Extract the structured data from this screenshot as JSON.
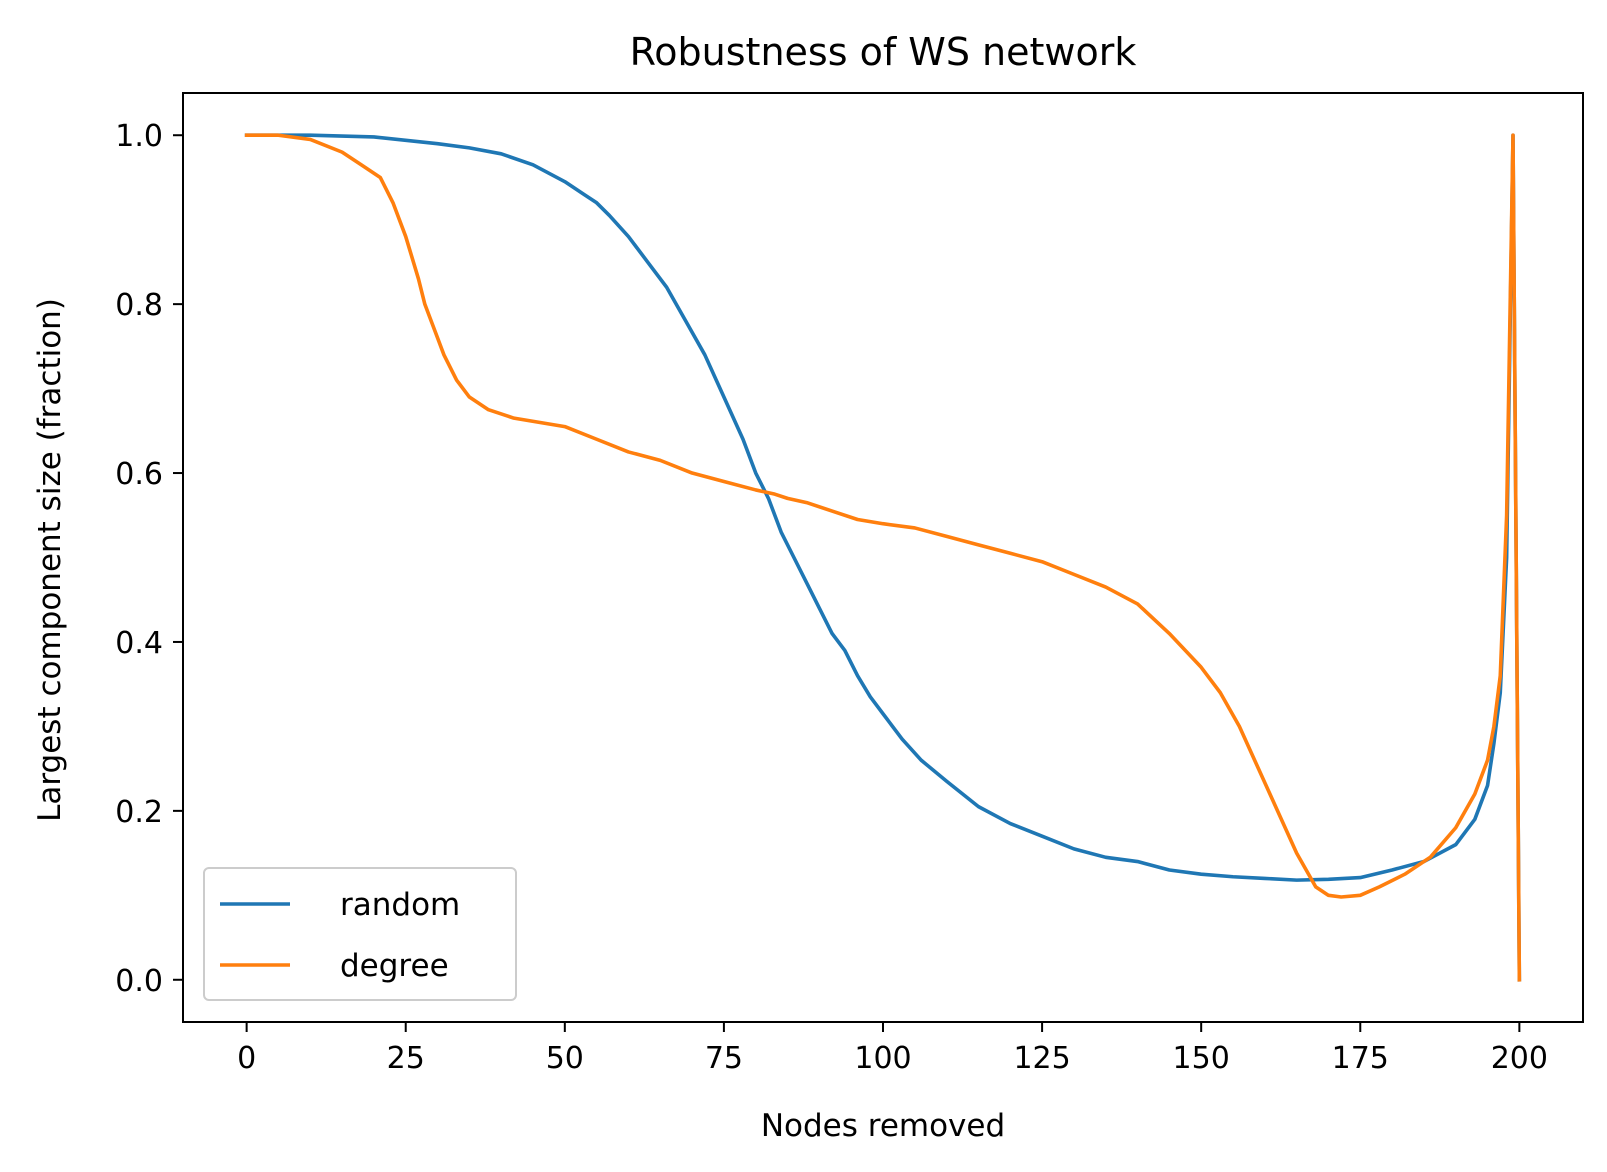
{
  "chart_data": {
    "type": "line",
    "title": "Robustness of WS network",
    "xlabel": "Nodes removed",
    "ylabel": "Largest component size (fraction)",
    "xlim": [
      -10,
      210
    ],
    "ylim": [
      -0.05,
      1.05
    ],
    "xticks": [
      0,
      25,
      50,
      75,
      100,
      125,
      150,
      175,
      200
    ],
    "xtick_labels": [
      "0",
      "25",
      "50",
      "75",
      "100",
      "125",
      "150",
      "175",
      "200"
    ],
    "yticks": [
      0.0,
      0.2,
      0.4,
      0.6,
      0.8,
      1.0
    ],
    "ytick_labels": [
      "0.0",
      "0.2",
      "0.4",
      "0.6",
      "0.8",
      "1.0"
    ],
    "grid": false,
    "legend_position": "lower-left",
    "colors": {
      "random": "#1f77b4",
      "degree": "#ff7f0e"
    },
    "series": [
      {
        "name": "random",
        "x": [
          0,
          10,
          20,
          30,
          35,
          40,
          45,
          50,
          53,
          55,
          57,
          60,
          63,
          66,
          69,
          72,
          75,
          78,
          80,
          82,
          84,
          86,
          88,
          90,
          92,
          94,
          96,
          98,
          100,
          103,
          106,
          110,
          115,
          120,
          125,
          130,
          135,
          140,
          145,
          150,
          155,
          160,
          165,
          170,
          175,
          180,
          185,
          190,
          193,
          195,
          196,
          197,
          198,
          199,
          200
        ],
        "y": [
          1.0,
          1.0,
          0.998,
          0.99,
          0.985,
          0.978,
          0.965,
          0.945,
          0.93,
          0.92,
          0.905,
          0.88,
          0.85,
          0.82,
          0.78,
          0.74,
          0.69,
          0.64,
          0.6,
          0.57,
          0.53,
          0.5,
          0.47,
          0.44,
          0.41,
          0.39,
          0.36,
          0.335,
          0.315,
          0.285,
          0.26,
          0.235,
          0.205,
          0.185,
          0.17,
          0.155,
          0.145,
          0.14,
          0.13,
          0.125,
          0.122,
          0.12,
          0.118,
          0.119,
          0.121,
          0.13,
          0.14,
          0.16,
          0.19,
          0.23,
          0.28,
          0.34,
          0.5,
          1.0,
          0.0
        ]
      },
      {
        "name": "degree",
        "x": [
          0,
          5,
          10,
          15,
          18,
          21,
          23,
          25,
          27,
          28,
          29,
          30,
          31,
          33,
          35,
          38,
          42,
          46,
          50,
          55,
          60,
          65,
          70,
          75,
          80,
          83,
          85,
          88,
          92,
          96,
          100,
          105,
          110,
          115,
          120,
          125,
          130,
          135,
          140,
          145,
          150,
          153,
          156,
          159,
          162,
          165,
          168,
          170,
          172,
          175,
          178,
          182,
          186,
          190,
          193,
          195,
          196,
          197,
          198,
          199,
          200
        ],
        "y": [
          1.0,
          1.0,
          0.995,
          0.98,
          0.965,
          0.95,
          0.92,
          0.88,
          0.83,
          0.8,
          0.78,
          0.76,
          0.74,
          0.71,
          0.69,
          0.675,
          0.665,
          0.66,
          0.655,
          0.64,
          0.625,
          0.615,
          0.6,
          0.59,
          0.58,
          0.575,
          0.57,
          0.565,
          0.555,
          0.545,
          0.54,
          0.535,
          0.525,
          0.515,
          0.505,
          0.495,
          0.48,
          0.465,
          0.445,
          0.41,
          0.37,
          0.34,
          0.3,
          0.25,
          0.2,
          0.15,
          0.11,
          0.1,
          0.098,
          0.1,
          0.11,
          0.125,
          0.145,
          0.18,
          0.22,
          0.26,
          0.3,
          0.36,
          0.55,
          1.0,
          0.0
        ]
      }
    ]
  }
}
